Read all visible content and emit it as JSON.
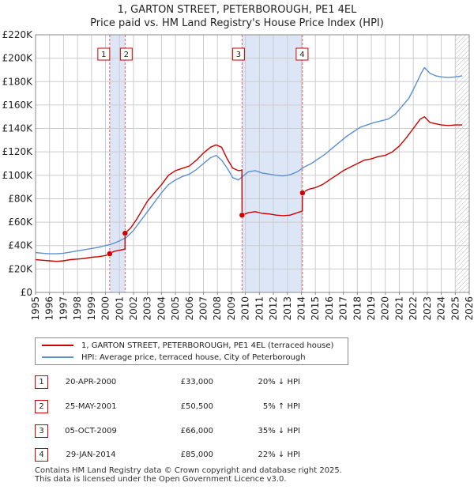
{
  "title": {
    "line1": "1, GARTON STREET, PETERBOROUGH, PE1 4EL",
    "line2": "Price paid vs. HM Land Registry's House Price Index (HPI)"
  },
  "colors": {
    "property": "#cc0000",
    "hpi": "#5b8fd0",
    "shade": "#dde6f6",
    "grid": "#cccccc",
    "vline": "#e06060"
  },
  "chart_data": {
    "type": "line",
    "title": "Price paid vs. HM Land Registry's House Price Index (HPI)",
    "xlabel": "",
    "ylabel": "",
    "xlim": [
      1995,
      2026
    ],
    "ylim": [
      0,
      220000
    ],
    "y_ticks": [
      {
        "value": 0,
        "label": "£0"
      },
      {
        "value": 20000,
        "label": "£20K"
      },
      {
        "value": 40000,
        "label": "£40K"
      },
      {
        "value": 60000,
        "label": "£60K"
      },
      {
        "value": 80000,
        "label": "£80K"
      },
      {
        "value": 100000,
        "label": "£100K"
      },
      {
        "value": 120000,
        "label": "£120K"
      },
      {
        "value": 140000,
        "label": "£140K"
      },
      {
        "value": 160000,
        "label": "£160K"
      },
      {
        "value": 180000,
        "label": "£180K"
      },
      {
        "value": 200000,
        "label": "£200K"
      },
      {
        "value": 220000,
        "label": "£220K"
      }
    ],
    "x_ticks": [
      "1995",
      "1996",
      "1997",
      "1998",
      "1999",
      "2000",
      "2001",
      "2002",
      "2003",
      "2004",
      "2005",
      "2006",
      "2007",
      "2008",
      "2009",
      "2010",
      "2011",
      "2012",
      "2013",
      "2014",
      "2015",
      "2016",
      "2017",
      "2018",
      "2019",
      "2020",
      "2021",
      "2022",
      "2023",
      "2024",
      "2025",
      "2026"
    ],
    "shaded_ranges": [
      [
        2000.3,
        2001.4
      ],
      [
        2009.76,
        2014.08
      ]
    ],
    "future_hatch_from": 2025.0,
    "sale_markers": [
      {
        "label": "1",
        "x": 2000.3,
        "y": 33000
      },
      {
        "label": "2",
        "x": 2001.4,
        "y": 50500
      },
      {
        "label": "3",
        "x": 2009.76,
        "y": 66000
      },
      {
        "label": "4",
        "x": 2014.08,
        "y": 85000
      }
    ],
    "series": [
      {
        "name": "1, GARTON STREET, PETERBOROUGH, PE1 4EL (terraced house)",
        "color": "#cc0000",
        "points": [
          [
            1995.0,
            28000
          ],
          [
            1995.5,
            27500
          ],
          [
            1996.0,
            27000
          ],
          [
            1996.5,
            26500
          ],
          [
            1997.0,
            27000
          ],
          [
            1997.5,
            28000
          ],
          [
            1998.0,
            28500
          ],
          [
            1998.5,
            29000
          ],
          [
            1999.0,
            30000
          ],
          [
            1999.5,
            30500
          ],
          [
            2000.0,
            31500
          ],
          [
            2000.3,
            33000
          ],
          [
            2000.6,
            35000
          ],
          [
            2001.0,
            36000
          ],
          [
            2001.39,
            37000
          ],
          [
            2001.4,
            50500
          ],
          [
            2001.8,
            55000
          ],
          [
            2002.2,
            62000
          ],
          [
            2002.6,
            70000
          ],
          [
            2003.0,
            78000
          ],
          [
            2003.5,
            85000
          ],
          [
            2004.0,
            92000
          ],
          [
            2004.5,
            100000
          ],
          [
            2005.0,
            104000
          ],
          [
            2005.5,
            106000
          ],
          [
            2006.0,
            108000
          ],
          [
            2006.5,
            113000
          ],
          [
            2007.0,
            119000
          ],
          [
            2007.5,
            124000
          ],
          [
            2007.9,
            126000
          ],
          [
            2008.3,
            124000
          ],
          [
            2008.7,
            114000
          ],
          [
            2009.1,
            106000
          ],
          [
            2009.5,
            104000
          ],
          [
            2009.75,
            104500
          ],
          [
            2009.76,
            66000
          ],
          [
            2010.2,
            68000
          ],
          [
            2010.7,
            69000
          ],
          [
            2011.2,
            67500
          ],
          [
            2011.7,
            67000
          ],
          [
            2012.2,
            66000
          ],
          [
            2012.7,
            65500
          ],
          [
            2013.2,
            66000
          ],
          [
            2013.7,
            68000
          ],
          [
            2014.07,
            69500
          ],
          [
            2014.08,
            85000
          ],
          [
            2014.5,
            88000
          ],
          [
            2015.0,
            89500
          ],
          [
            2015.5,
            92000
          ],
          [
            2016.0,
            96000
          ],
          [
            2016.5,
            100000
          ],
          [
            2017.0,
            104000
          ],
          [
            2017.5,
            107000
          ],
          [
            2018.0,
            110000
          ],
          [
            2018.5,
            113000
          ],
          [
            2019.0,
            114000
          ],
          [
            2019.5,
            116000
          ],
          [
            2020.0,
            117000
          ],
          [
            2020.5,
            120000
          ],
          [
            2021.0,
            125000
          ],
          [
            2021.5,
            132000
          ],
          [
            2022.0,
            140000
          ],
          [
            2022.5,
            148000
          ],
          [
            2022.8,
            150000
          ],
          [
            2023.2,
            145000
          ],
          [
            2023.6,
            144000
          ],
          [
            2024.0,
            143000
          ],
          [
            2024.5,
            142500
          ],
          [
            2025.0,
            143000
          ],
          [
            2025.5,
            143000
          ]
        ]
      },
      {
        "name": "HPI: Average price, terraced house, City of Peterborough",
        "color": "#5b8fd0",
        "points": [
          [
            1995.0,
            34000
          ],
          [
            1995.5,
            33500
          ],
          [
            1996.0,
            33000
          ],
          [
            1996.5,
            33000
          ],
          [
            1997.0,
            33500
          ],
          [
            1997.5,
            34500
          ],
          [
            1998.0,
            35500
          ],
          [
            1998.5,
            36500
          ],
          [
            1999.0,
            37500
          ],
          [
            1999.5,
            38500
          ],
          [
            2000.0,
            40000
          ],
          [
            2000.5,
            41500
          ],
          [
            2001.0,
            44000
          ],
          [
            2001.5,
            47000
          ],
          [
            2002.0,
            53000
          ],
          [
            2002.5,
            61000
          ],
          [
            2003.0,
            69000
          ],
          [
            2003.5,
            77000
          ],
          [
            2004.0,
            85000
          ],
          [
            2004.5,
            92000
          ],
          [
            2005.0,
            96000
          ],
          [
            2005.5,
            99000
          ],
          [
            2006.0,
            101000
          ],
          [
            2006.5,
            105000
          ],
          [
            2007.0,
            110000
          ],
          [
            2007.5,
            115000
          ],
          [
            2007.9,
            117000
          ],
          [
            2008.3,
            113000
          ],
          [
            2008.7,
            106000
          ],
          [
            2009.1,
            98000
          ],
          [
            2009.5,
            96000
          ],
          [
            2009.8,
            99000
          ],
          [
            2010.2,
            103000
          ],
          [
            2010.7,
            104000
          ],
          [
            2011.2,
            102000
          ],
          [
            2011.7,
            101000
          ],
          [
            2012.2,
            100000
          ],
          [
            2012.7,
            99500
          ],
          [
            2013.2,
            100500
          ],
          [
            2013.7,
            103000
          ],
          [
            2014.2,
            107000
          ],
          [
            2014.7,
            110000
          ],
          [
            2015.2,
            114000
          ],
          [
            2015.7,
            118000
          ],
          [
            2016.2,
            123000
          ],
          [
            2016.7,
            128000
          ],
          [
            2017.2,
            133000
          ],
          [
            2017.7,
            137000
          ],
          [
            2018.2,
            141000
          ],
          [
            2018.7,
            143000
          ],
          [
            2019.2,
            145000
          ],
          [
            2019.7,
            146500
          ],
          [
            2020.2,
            148000
          ],
          [
            2020.7,
            152000
          ],
          [
            2021.2,
            159000
          ],
          [
            2021.7,
            166000
          ],
          [
            2022.2,
            178000
          ],
          [
            2022.6,
            188000
          ],
          [
            2022.8,
            192000
          ],
          [
            2023.2,
            187000
          ],
          [
            2023.6,
            185000
          ],
          [
            2024.0,
            184000
          ],
          [
            2024.5,
            183500
          ],
          [
            2025.0,
            184000
          ],
          [
            2025.5,
            185000
          ]
        ]
      }
    ]
  },
  "legend": {
    "property_label": "1, GARTON STREET, PETERBOROUGH, PE1 4EL (terraced house)",
    "hpi_label": "HPI: Average price, terraced house, City of Peterborough"
  },
  "sales": [
    {
      "num": "1",
      "date": "20-APR-2000",
      "price": "£33,000",
      "hpi": "20% ↓ HPI"
    },
    {
      "num": "2",
      "date": "25-MAY-2001",
      "price": "£50,500",
      "hpi": "5% ↑ HPI"
    },
    {
      "num": "3",
      "date": "05-OCT-2009",
      "price": "£66,000",
      "hpi": "35% ↓ HPI"
    },
    {
      "num": "4",
      "date": "29-JAN-2014",
      "price": "£85,000",
      "hpi": "22% ↓ HPI"
    }
  ],
  "footer": {
    "line1": "Contains HM Land Registry data © Crown copyright and database right 2025.",
    "line2": "This data is licensed under the Open Government Licence v3.0."
  }
}
